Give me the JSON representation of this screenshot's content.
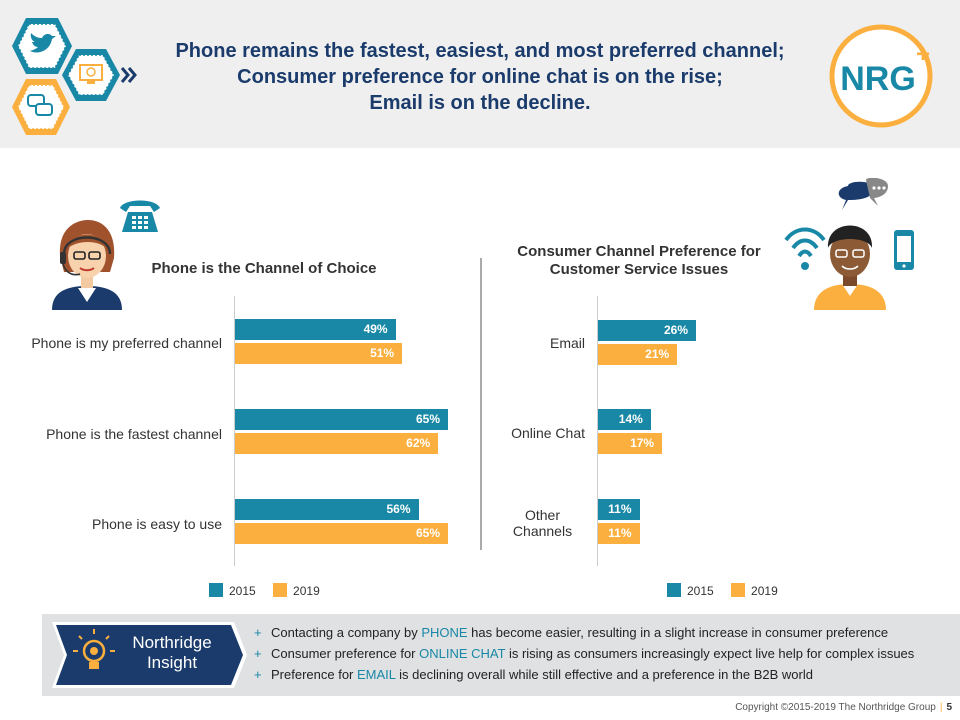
{
  "header": {
    "lines": [
      "Phone remains the fastest, easiest, and most preferred channel;",
      "Consumer preference for online chat is on the rise;",
      "Email is on the decline."
    ],
    "logo_text": "NRG",
    "logo_plus": "+"
  },
  "colors": {
    "s2015": "#1888a6",
    "s2019": "#fbaf3e",
    "navy": "#1a3b6b"
  },
  "chart_data": [
    {
      "type": "bar",
      "orientation": "horizontal",
      "title": "Phone is the Channel of Choice",
      "categories": [
        "Phone is my preferred channel",
        "Phone is the fastest channel",
        "Phone is easy to use"
      ],
      "series": [
        {
          "name": "2015",
          "values": [
            49,
            65,
            56
          ],
          "labels": [
            "49%",
            "65%",
            "56%"
          ]
        },
        {
          "name": "2019",
          "values": [
            51,
            62,
            65
          ],
          "labels": [
            "51%",
            "62%",
            "65%"
          ]
        }
      ],
      "xlim": [
        0,
        65
      ]
    },
    {
      "type": "bar",
      "orientation": "horizontal",
      "title": "Consumer Channel Preference for Customer Service Issues",
      "title_lines": [
        "Consumer Channel Preference for",
        "Customer Service Issues"
      ],
      "categories": [
        "Email",
        "Online Chat",
        "Other Channels"
      ],
      "category_lines": [
        [
          "Email"
        ],
        [
          "Online Chat"
        ],
        [
          "Other",
          "Channels"
        ]
      ],
      "series": [
        {
          "name": "2015",
          "values": [
            26,
            14,
            11
          ],
          "labels": [
            "26%",
            "14%",
            "11%"
          ]
        },
        {
          "name": "2019",
          "values": [
            21,
            17,
            11
          ],
          "labels": [
            "21%",
            "17%",
            "11%"
          ]
        }
      ],
      "xlim": [
        0,
        26
      ]
    }
  ],
  "insight": {
    "label_line1": "Northridge",
    "label_line2": "Insight",
    "items": [
      {
        "pre": "Contacting a company by ",
        "hl": "PHONE",
        "post": " has become easier, resulting in a slight increase in consumer preference"
      },
      {
        "pre": "Consumer preference for ",
        "hl": "ONLINE CHAT",
        "post": " is rising as consumers increasingly expect live help for complex issues"
      },
      {
        "pre": "Preference for ",
        "hl": "EMAIL",
        "post": " is declining overall while still effective and a preference in the B2B world"
      }
    ]
  },
  "footer": {
    "copyright": "Copyright ©2015-2019 The Northridge Group",
    "separator": "|",
    "page": "5"
  }
}
